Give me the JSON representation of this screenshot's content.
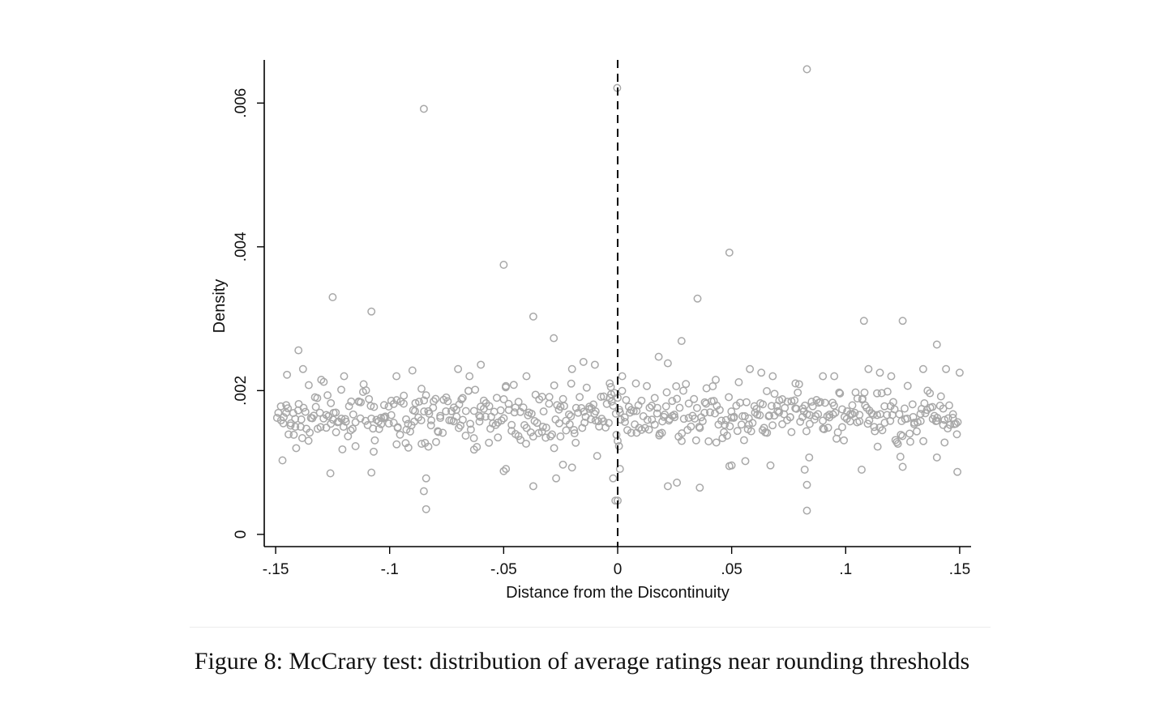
{
  "caption": "Figure 8: McCrary test: distribution of average ratings near rounding thresholds",
  "chart_data": {
    "type": "scatter",
    "title": "",
    "xlabel": "Distance from the Discontinuity",
    "ylabel": "Density",
    "xlim": [
      -0.155,
      0.155
    ],
    "ylim": [
      -0.00017,
      0.0066
    ],
    "x_ticks": [
      -0.15,
      -0.1,
      -0.05,
      0,
      0.05,
      0.1,
      0.15
    ],
    "x_tick_labels": [
      "-.15",
      "-.1",
      "-.05",
      "0",
      ".05",
      ".1",
      ".15"
    ],
    "y_ticks": [
      0,
      0.002,
      0.004,
      0.006
    ],
    "y_tick_labels": [
      "0",
      ".002",
      ".004",
      ".006"
    ],
    "vertical_line": {
      "x": 0,
      "style": "dashed",
      "color": "#000000"
    },
    "marker": {
      "shape": "hollow-circle",
      "color": "#a8a8a8"
    },
    "grid": false,
    "legend": "none",
    "series": [
      {
        "points": [
          [
            -0.085,
            0.00592
          ],
          [
            -0.0002,
            0.00621
          ],
          [
            0.083,
            0.00647
          ],
          [
            -0.05,
            0.00375
          ],
          [
            0.049,
            0.00392
          ],
          [
            -0.125,
            0.0033
          ],
          [
            -0.108,
            0.0031
          ],
          [
            -0.037,
            0.00303
          ],
          [
            0.035,
            0.00328
          ],
          [
            0.108,
            0.00297
          ],
          [
            0.125,
            0.00297
          ],
          [
            -0.028,
            0.00273
          ],
          [
            0.028,
            0.00269
          ],
          [
            -0.14,
            0.00256
          ],
          [
            0.14,
            0.00264
          ],
          [
            -0.015,
            0.0024
          ],
          [
            0.018,
            0.00247
          ],
          [
            -0.06,
            0.00236
          ],
          [
            0.022,
            0.00238
          ],
          [
            -0.01,
            0.00236
          ],
          [
            -0.147,
            0.00103
          ],
          [
            -0.141,
            0.0012
          ],
          [
            -0.126,
            0.00085
          ],
          [
            -0.108,
            0.00086
          ],
          [
            -0.107,
            0.00115
          ],
          [
            -0.093,
            0.00127
          ],
          [
            -0.086,
            0.00126
          ],
          [
            -0.085,
            0.0006
          ],
          [
            -0.084,
            0.00078
          ],
          [
            -0.084,
            0.00035
          ],
          [
            -0.083,
            0.00122
          ],
          [
            -0.063,
            0.00118
          ],
          [
            -0.05,
            0.00088
          ],
          [
            -0.049,
            0.00091
          ],
          [
            -0.037,
            0.00067
          ],
          [
            -0.027,
            0.00078
          ],
          [
            -0.024,
            0.00097
          ],
          [
            -0.02,
            0.00093
          ],
          [
            -0.009,
            0.00109
          ],
          [
            -0.002,
            0.00078
          ],
          [
            -0.001,
            0.00047
          ],
          [
            0.0,
            0.00047
          ],
          [
            0.001,
            0.00091
          ],
          [
            0.022,
            0.00067
          ],
          [
            0.026,
            0.00072
          ],
          [
            0.036,
            0.00065
          ],
          [
            0.049,
            0.00095
          ],
          [
            0.05,
            0.00096
          ],
          [
            0.056,
            0.00102
          ],
          [
            0.067,
            0.00096
          ],
          [
            0.082,
            0.0009
          ],
          [
            0.083,
            0.00033
          ],
          [
            0.083,
            0.00069
          ],
          [
            0.084,
            0.00107
          ],
          [
            0.107,
            0.0009
          ],
          [
            0.125,
            0.00094
          ],
          [
            0.124,
            0.00108
          ],
          [
            0.114,
            0.00122
          ],
          [
            0.14,
            0.00107
          ],
          [
            0.149,
            0.00087
          ],
          [
            0.0,
            0.0013
          ],
          [
            0.001,
            0.0017
          ],
          [
            0.0,
            0.0019
          ],
          [
            -0.003,
            0.00205
          ],
          [
            0.002,
            0.0022
          ],
          [
            -0.0035,
            0.0021
          ],
          [
            0.008,
            0.0021
          ],
          [
            -0.065,
            0.0022
          ],
          [
            -0.07,
            0.0023
          ],
          [
            -0.13,
            0.00215
          ],
          [
            -0.138,
            0.0023
          ],
          [
            -0.145,
            0.00222
          ],
          [
            -0.097,
            0.0022
          ],
          [
            -0.09,
            0.00228
          ],
          [
            -0.12,
            0.0022
          ],
          [
            -0.04,
            0.0022
          ],
          [
            -0.02,
            0.0023
          ],
          [
            0.043,
            0.00215
          ],
          [
            0.058,
            0.0023
          ],
          [
            0.063,
            0.00225
          ],
          [
            0.068,
            0.0022
          ],
          [
            0.078,
            0.0021
          ],
          [
            0.09,
            0.0022
          ],
          [
            0.095,
            0.0022
          ],
          [
            0.11,
            0.0023
          ],
          [
            0.115,
            0.00225
          ],
          [
            0.12,
            0.0022
          ],
          [
            0.134,
            0.0023
          ],
          [
            0.144,
            0.0023
          ],
          [
            0.15,
            0.00225
          ]
        ]
      }
    ]
  }
}
